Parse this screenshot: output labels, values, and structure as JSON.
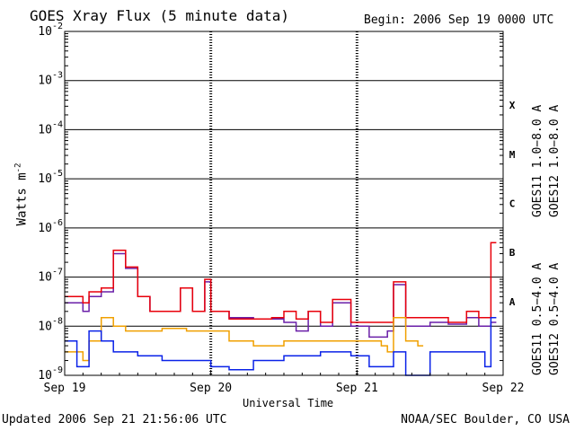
{
  "header": {
    "title": "GOES Xray Flux (5 minute data)",
    "begin": "Begin:  2006 Sep 19 0000 UTC"
  },
  "footer": {
    "updated": "Updated 2006 Sep 21 21:56:06 UTC",
    "credit": "NOAA/SEC Boulder, CO USA"
  },
  "chart_data": {
    "type": "line",
    "title": "GOES Xray Flux (5 minute data)",
    "xlabel": "Universal Time",
    "ylabel": "Watts m",
    "ylabel_sup": "-2",
    "yscale": "log",
    "ylim": [
      1e-09,
      0.01
    ],
    "xlim": [
      "2006-09-19 00:00",
      "2006-09-22 00:00"
    ],
    "x_ticks": [
      "Sep 19",
      "Sep 20",
      "Sep 21",
      "Sep 22"
    ],
    "y_ticks": [
      {
        "base": "10",
        "exp": "-2",
        "value": 0.01
      },
      {
        "base": "10",
        "exp": "-3",
        "value": 0.001
      },
      {
        "base": "10",
        "exp": "-4",
        "value": 0.0001
      },
      {
        "base": "10",
        "exp": "-5",
        "value": 1e-05
      },
      {
        "base": "10",
        "exp": "-6",
        "value": 1e-06
      },
      {
        "base": "10",
        "exp": "-7",
        "value": 1e-07
      },
      {
        "base": "10",
        "exp": "-8",
        "value": 1e-08
      },
      {
        "base": "10",
        "exp": "-9",
        "value": 1e-09
      }
    ],
    "flare_classes": [
      {
        "label": "X",
        "lower": 0.0001
      },
      {
        "label": "M",
        "lower": 1e-05
      },
      {
        "label": "C",
        "lower": 1e-06
      },
      {
        "label": "B",
        "lower": 1e-07
      },
      {
        "label": "A",
        "lower": 1e-08
      }
    ],
    "grid": true,
    "legend_placement": "right",
    "series": [
      {
        "name": "GOES11 1.0−8.0 A",
        "color": "#6a1fa8",
        "points": [
          [
            "2006-09-19 00:00",
            3e-08
          ],
          [
            "2006-09-19 03:00",
            2e-08
          ],
          [
            "2006-09-19 04:00",
            4e-08
          ],
          [
            "2006-09-19 06:00",
            5e-08
          ],
          [
            "2006-09-19 08:00",
            3e-07
          ],
          [
            "2006-09-19 10:00",
            1.5e-07
          ],
          [
            "2006-09-19 12:00",
            4e-08
          ],
          [
            "2006-09-19 14:00",
            2e-08
          ],
          [
            "2006-09-19 17:00",
            2e-08
          ],
          [
            "2006-09-19 19:00",
            6e-08
          ],
          [
            "2006-09-19 21:00",
            2e-08
          ],
          [
            "2006-09-19 23:00",
            8e-08
          ],
          [
            "2006-09-20 00:00",
            2e-08
          ],
          [
            "2006-09-20 03:00",
            1.5e-08
          ],
          [
            "2006-09-20 07:00",
            1.4e-08
          ],
          [
            "2006-09-20 12:00",
            1.2e-08
          ],
          [
            "2006-09-20 14:00",
            8e-09
          ],
          [
            "2006-09-20 16:00",
            2e-08
          ],
          [
            "2006-09-20 18:00",
            1e-08
          ],
          [
            "2006-09-20 20:00",
            3e-08
          ],
          [
            "2006-09-20 23:00",
            1e-08
          ],
          [
            "2006-09-21 02:00",
            6e-09
          ],
          [
            "2006-09-21 05:00",
            8e-09
          ],
          [
            "2006-09-21 06:00",
            7e-08
          ],
          [
            "2006-09-21 08:00",
            1e-08
          ],
          [
            "2006-09-21 12:00",
            1.2e-08
          ],
          [
            "2006-09-21 15:00",
            1.1e-08
          ],
          [
            "2006-09-21 18:00",
            1.5e-08
          ],
          [
            "2006-09-21 20:00",
            1e-08
          ],
          [
            "2006-09-21 22:00",
            1.2e-08
          ]
        ]
      },
      {
        "name": "GOES12 1.0−8.0 A",
        "color": "#e8000b",
        "points": [
          [
            "2006-09-19 00:00",
            4e-08
          ],
          [
            "2006-09-19 03:00",
            3e-08
          ],
          [
            "2006-09-19 04:00",
            5e-08
          ],
          [
            "2006-09-19 06:00",
            6e-08
          ],
          [
            "2006-09-19 08:00",
            3.5e-07
          ],
          [
            "2006-09-19 10:00",
            1.6e-07
          ],
          [
            "2006-09-19 12:00",
            4e-08
          ],
          [
            "2006-09-19 14:00",
            2e-08
          ],
          [
            "2006-09-19 17:00",
            2e-08
          ],
          [
            "2006-09-19 19:00",
            6e-08
          ],
          [
            "2006-09-19 21:00",
            2e-08
          ],
          [
            "2006-09-19 23:00",
            9e-08
          ],
          [
            "2006-09-20 00:00",
            2e-08
          ],
          [
            "2006-09-20 03:00",
            1.4e-08
          ],
          [
            "2006-09-20 07:00",
            1.4e-08
          ],
          [
            "2006-09-20 10:00",
            1.5e-08
          ],
          [
            "2006-09-20 12:00",
            2e-08
          ],
          [
            "2006-09-20 14:00",
            1.4e-08
          ],
          [
            "2006-09-20 16:00",
            2e-08
          ],
          [
            "2006-09-20 18:00",
            1.2e-08
          ],
          [
            "2006-09-20 20:00",
            3.5e-08
          ],
          [
            "2006-09-20 23:00",
            1.2e-08
          ],
          [
            "2006-09-21 02:00",
            1.2e-08
          ],
          [
            "2006-09-21 05:00",
            1.2e-08
          ],
          [
            "2006-09-21 06:00",
            8e-08
          ],
          [
            "2006-09-21 08:00",
            1.5e-08
          ],
          [
            "2006-09-21 12:00",
            1.5e-08
          ],
          [
            "2006-09-21 15:00",
            1.2e-08
          ],
          [
            "2006-09-21 18:00",
            2e-08
          ],
          [
            "2006-09-21 20:00",
            1.5e-08
          ],
          [
            "2006-09-21 22:00",
            5e-07
          ]
        ]
      },
      {
        "name": "GOES11 0.5−4.0 A",
        "color": "#f0a000",
        "points": [
          [
            "2006-09-19 00:00",
            3e-09
          ],
          [
            "2006-09-19 03:00",
            2e-09
          ],
          [
            "2006-09-19 04:00",
            5e-09
          ],
          [
            "2006-09-19 06:00",
            1.5e-08
          ],
          [
            "2006-09-19 08:00",
            1e-08
          ],
          [
            "2006-09-19 10:00",
            8e-09
          ],
          [
            "2006-09-19 12:00",
            8e-09
          ],
          [
            "2006-09-19 16:00",
            9e-09
          ],
          [
            "2006-09-19 20:00",
            8e-09
          ],
          [
            "2006-09-20 00:00",
            8e-09
          ],
          [
            "2006-09-20 03:00",
            5e-09
          ],
          [
            "2006-09-20 07:00",
            4e-09
          ],
          [
            "2006-09-20 12:00",
            5e-09
          ],
          [
            "2006-09-20 17:00",
            5e-09
          ],
          [
            "2006-09-20 23:00",
            5e-09
          ],
          [
            "2006-09-21 04:00",
            4e-09
          ],
          [
            "2006-09-21 05:00",
            3e-09
          ],
          [
            "2006-09-21 06:00",
            1.5e-08
          ],
          [
            "2006-09-21 08:00",
            5e-09
          ],
          [
            "2006-09-21 10:00",
            4e-09
          ]
        ]
      },
      {
        "name": "GOES12 0.5−4.0 A",
        "color": "#0a22e8",
        "points": [
          [
            "2006-09-19 00:00",
            5e-09
          ],
          [
            "2006-09-19 02:00",
            1.5e-09
          ],
          [
            "2006-09-19 04:00",
            8e-09
          ],
          [
            "2006-09-19 06:00",
            5e-09
          ],
          [
            "2006-09-19 08:00",
            3e-09
          ],
          [
            "2006-09-19 12:00",
            2.5e-09
          ],
          [
            "2006-09-19 16:00",
            2e-09
          ],
          [
            "2006-09-19 20:00",
            2e-09
          ],
          [
            "2006-09-20 00:00",
            1.5e-09
          ],
          [
            "2006-09-20 03:00",
            1.3e-09
          ],
          [
            "2006-09-20 07:00",
            2e-09
          ],
          [
            "2006-09-20 12:00",
            2.5e-09
          ],
          [
            "2006-09-20 18:00",
            3e-09
          ],
          [
            "2006-09-20 23:00",
            2.5e-09
          ],
          [
            "2006-09-21 02:00",
            1.5e-09
          ],
          [
            "2006-09-21 06:00",
            3e-09
          ],
          [
            "2006-09-21 08:00",
            1e-09
          ],
          [
            "2006-09-21 12:00",
            3e-09
          ],
          [
            "2006-09-21 18:00",
            3e-09
          ],
          [
            "2006-09-21 21:00",
            1.5e-09
          ],
          [
            "2006-09-21 22:00",
            1.5e-08
          ]
        ]
      }
    ]
  }
}
